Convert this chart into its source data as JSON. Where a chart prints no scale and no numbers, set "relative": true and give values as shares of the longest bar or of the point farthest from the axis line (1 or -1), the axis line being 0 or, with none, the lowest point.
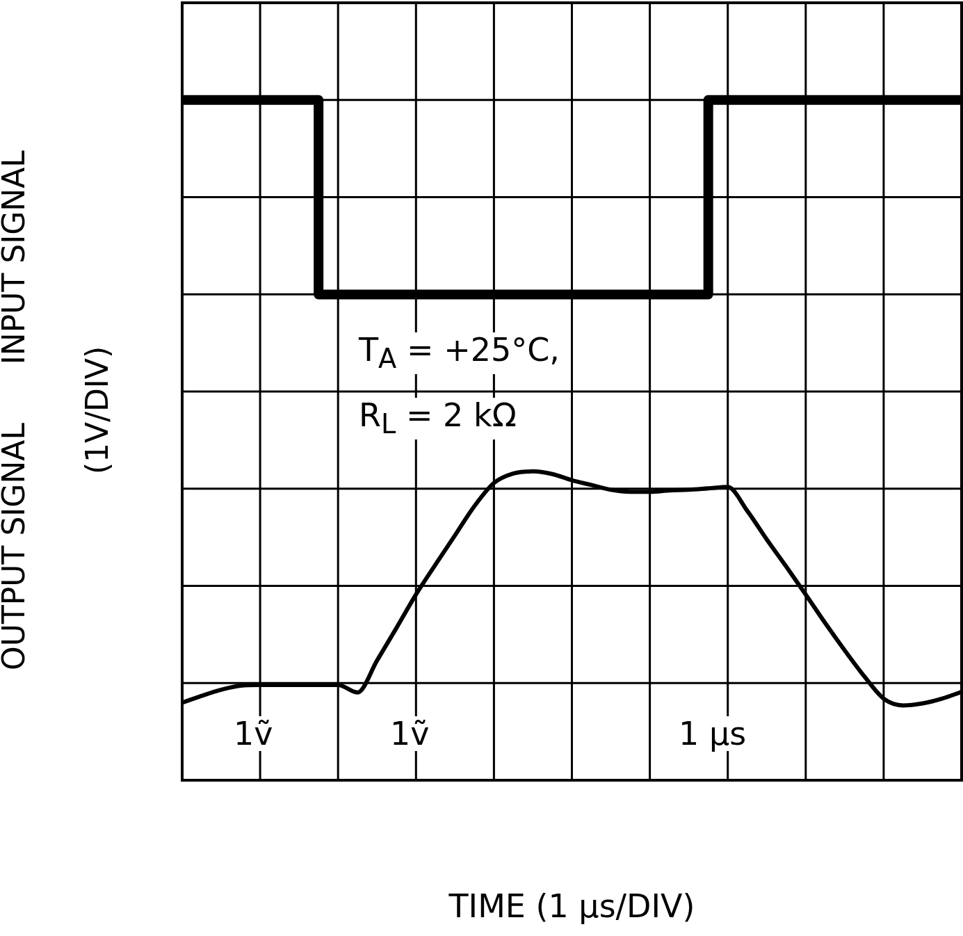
{
  "chart_data": {
    "type": "line",
    "relative": true,
    "xlabel": "TIME (1 μs/DIV)",
    "ylabel": "OUTPUT SIGNAL      INPUT SIGNAL\n(1V/DIV)",
    "categories": [
      null,
      null,
      null,
      null,
      null,
      null,
      null,
      null,
      null,
      null,
      null,
      null,
      null,
      null,
      null,
      null,
      null,
      null,
      null,
      null,
      null,
      null,
      null,
      null,
      null,
      null,
      null,
      null,
      null,
      null,
      null,
      null,
      null,
      null,
      null,
      null,
      null,
      null,
      null,
      null,
      null
    ],
    "series": [
      {
        "type": "step",
        "color": "#000000",
        "values": [
          1,
          1,
          1,
          1,
          1,
          1,
          1,
          1,
          0.714,
          0.714,
          0.714,
          0.714,
          0.714,
          0.714,
          0.714,
          0.714,
          0.714,
          0.714,
          0.714,
          0.714,
          0.714,
          0.714,
          0.714,
          0.714,
          0.714,
          0.714,
          0.714,
          0.714,
          1,
          1,
          1,
          1,
          1,
          1,
          1,
          1,
          1,
          1,
          1,
          1,
          1
        ]
      },
      {
        "type": "line",
        "color": "#000000",
        "values": [
          0.114,
          0.124,
          0.133,
          0.139,
          0.14,
          0.14,
          0.14,
          0.14,
          0.14,
          0.129,
          0.176,
          0.224,
          0.273,
          0.317,
          0.36,
          0.403,
          0.437,
          0.451,
          0.454,
          0.45,
          0.441,
          0.434,
          0.427,
          0.424,
          0.424,
          0.426,
          0.427,
          0.429,
          0.431,
          0.396,
          0.354,
          0.314,
          0.273,
          0.231,
          0.191,
          0.153,
          0.12,
          0.11,
          0.113,
          0.12,
          0.13
        ]
      }
    ],
    "grid": true,
    "legend": false,
    "marker": "none",
    "annotations": [
      "T$_{A}$ = +25°C,",
      "R$_{L}$ = 2 kΩ",
      "1ṽ",
      "1ṽ",
      "1 μs"
    ]
  }
}
